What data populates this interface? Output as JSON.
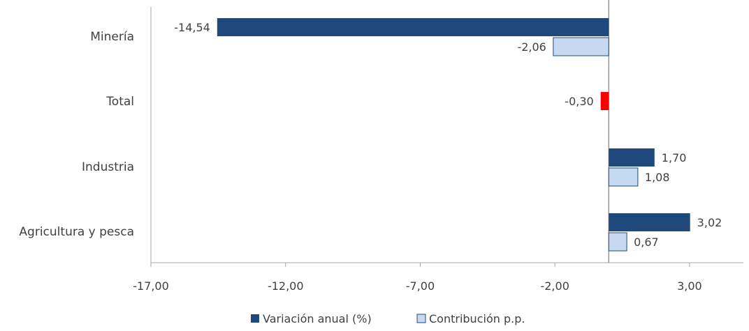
{
  "chart_data": {
    "type": "bar",
    "orientation": "horizontal",
    "categories": [
      "Minería",
      "Total",
      "Industria",
      "Agricultura y pesca"
    ],
    "series": [
      {
        "name": "Variación anual (%)",
        "values": [
          -14.54,
          -0.3,
          1.7,
          3.02
        ],
        "labels": [
          "-14,54",
          "-0,30",
          "1,70",
          "3,02"
        ],
        "color": "#1f497d"
      },
      {
        "name": "Contribución p.p.",
        "values": [
          -2.06,
          null,
          1.08,
          0.67
        ],
        "labels": [
          "-2,06",
          "",
          "1,08",
          "0,67"
        ],
        "color": "#c6d9f1"
      }
    ],
    "highlight": {
      "category": "Total",
      "color": "#ff0000"
    },
    "xlim": [
      -17,
      5
    ],
    "xticks": [
      -17,
      -12,
      -7,
      -2,
      3
    ],
    "xtick_labels": [
      "-17,00",
      "-12,00",
      "-7,00",
      "-2,00",
      "3,00"
    ],
    "legend_position": "bottom",
    "grid": false
  }
}
